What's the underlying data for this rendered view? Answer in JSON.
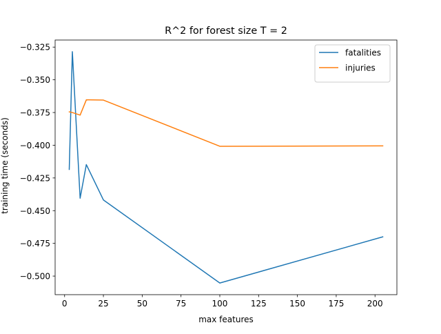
{
  "chart_data": {
    "type": "line",
    "title": "R^2 for forest size T = 2",
    "xlabel": "max features",
    "ylabel": "training time (seconds)",
    "x": [
      3,
      5,
      10,
      14,
      25,
      100,
      205
    ],
    "series": [
      {
        "name": "fatalities",
        "color": "#1f77b4",
        "values": [
          -0.4185,
          -0.3285,
          -0.4405,
          -0.4148,
          -0.4418,
          -0.5053,
          -0.47
        ]
      },
      {
        "name": "injuries",
        "color": "#ff7f0e",
        "values": [
          -0.3745,
          -0.375,
          -0.377,
          -0.3653,
          -0.3655,
          -0.4008,
          -0.4005
        ]
      }
    ],
    "xlim": [
      -6.1,
      214.1
    ],
    "ylim": [
      -0.5142,
      -0.3196
    ],
    "xticks": [
      0,
      25,
      50,
      75,
      100,
      125,
      150,
      175,
      200
    ],
    "xtick_labels": [
      "0",
      "25",
      "50",
      "75",
      "100",
      "125",
      "150",
      "175",
      "200"
    ],
    "yticks": [
      -0.325,
      -0.35,
      -0.375,
      -0.4,
      -0.425,
      -0.45,
      -0.475,
      -0.5
    ],
    "ytick_labels": [
      "−0.325",
      "−0.350",
      "−0.375",
      "−0.400",
      "−0.425",
      "−0.450",
      "−0.475",
      "−0.500"
    ],
    "grid": false,
    "legend_position": "top-right"
  }
}
